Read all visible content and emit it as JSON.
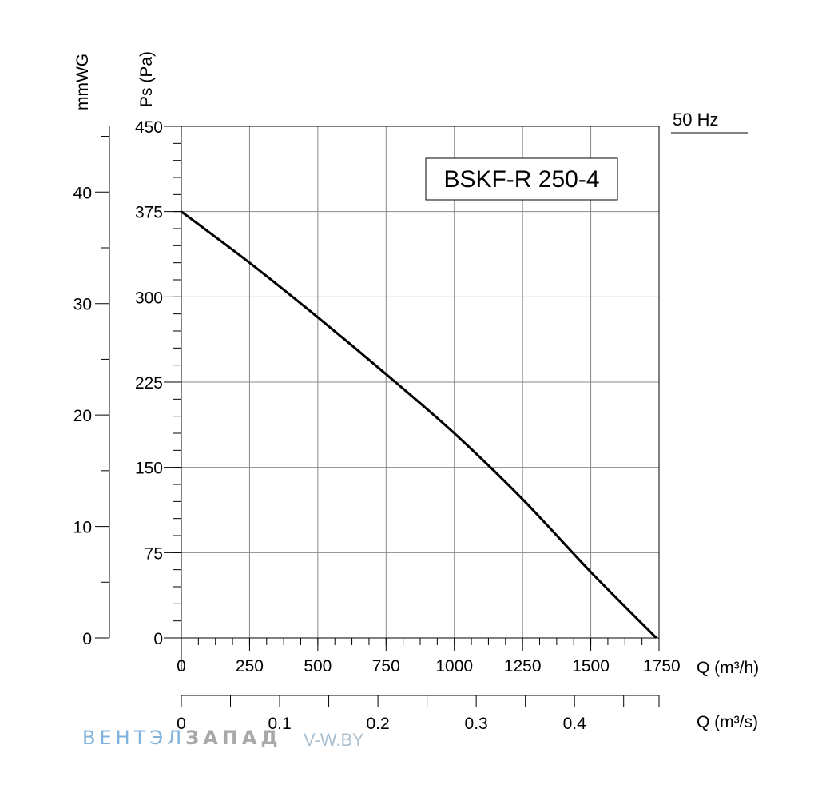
{
  "chart_data": {
    "type": "line",
    "title": "BSKF-R 250-4",
    "frequency_label": "50 Hz",
    "xlabel": "Q (m³/h)",
    "ylabel": "Ps (Pa)",
    "xlim": [
      0,
      1750
    ],
    "ylim": [
      0,
      450
    ],
    "x_ticks": [
      "0",
      "250",
      "500",
      "750",
      "1000",
      "1250",
      "1500",
      "1750"
    ],
    "y_ticks": [
      "0",
      "75",
      "150",
      "225",
      "300",
      "375",
      "450"
    ],
    "secondary_x": {
      "label": "Q (m³/s)",
      "lim": [
        0,
        0.486
      ],
      "ticks": [
        "0",
        "0.1",
        "0.2",
        "0.3",
        "0.4"
      ]
    },
    "secondary_y": {
      "label": "mmWG",
      "lim": [
        0,
        45.9
      ],
      "ticks": [
        "0",
        "10",
        "20",
        "30",
        "40"
      ]
    },
    "grid": true,
    "series": [
      {
        "color": "#000000",
        "x": [
          0,
          250,
          500,
          750,
          1000,
          1250,
          1500,
          1740
        ],
        "y": [
          375,
          330,
          282,
          232,
          180,
          122,
          58,
          0
        ]
      }
    ]
  },
  "watermark": {
    "part1": "ВЕНТЭЛ",
    "part2": "ЗАПАД",
    "url": "V-W.BY"
  }
}
